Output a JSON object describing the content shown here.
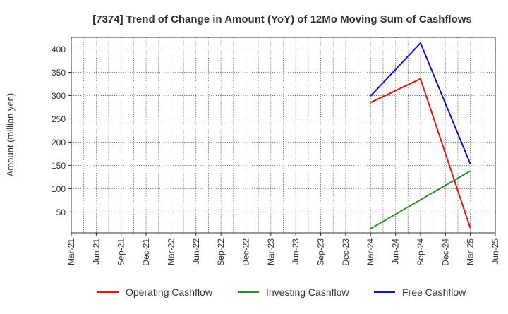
{
  "chart_data": {
    "type": "line",
    "title": "[7374]  Trend of Change in Amount (YoY) of 12Mo Moving Sum of Cashflows",
    "xlabel": "",
    "ylabel": "Amount (million yen)",
    "x_ticks": [
      "Mar-21",
      "Jun-21",
      "Sep-21",
      "Dec-21",
      "Mar-22",
      "Jun-22",
      "Sep-22",
      "Dec-22",
      "Mar-23",
      "Jun-23",
      "Sep-23",
      "Dec-23",
      "Mar-24",
      "Jun-24",
      "Sep-24",
      "Dec-24",
      "Mar-25",
      "Jun-25"
    ],
    "y_ticks": [
      50,
      100,
      150,
      200,
      250,
      300,
      350,
      400
    ],
    "ylim": [
      5,
      425
    ],
    "grid": true,
    "legend_position": "bottom",
    "series": [
      {
        "name": "Operating Cashflow",
        "color": "#e8120c",
        "x": [
          "Mar-24",
          "Sep-24",
          "Mar-25"
        ],
        "values": [
          285,
          336,
          15
        ]
      },
      {
        "name": "Investing Cashflow",
        "color": "#2a8c2a",
        "x": [
          "Mar-24",
          "Mar-25"
        ],
        "values": [
          14,
          138
        ]
      },
      {
        "name": "Free Cashflow",
        "color": "#1010d8",
        "x": [
          "Mar-24",
          "Sep-24",
          "Mar-25"
        ],
        "values": [
          299,
          413,
          153
        ]
      }
    ]
  }
}
